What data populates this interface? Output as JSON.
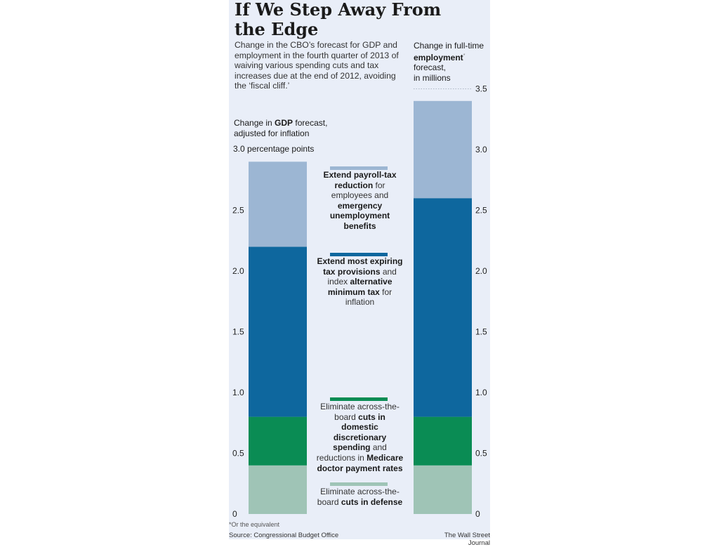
{
  "title": "If We Step Away From the Edge",
  "subtitle": "Change in the CBO’s forecast for GDP and employment in the fourth quarter of 2013 of waiving various spending cuts and tax increases due at the end of 2012, avoiding the ‘fiscal cliff.’",
  "gdp_label": {
    "pre": "Change in ",
    "bold": "GDP",
    "post": " forecast, adjusted for inflation"
  },
  "gdp_unit": "3.0 percentage points",
  "emp_label": {
    "line1": "Change in full-time",
    "bold": "employment",
    "mark": "*",
    "line3": "forecast,",
    "line4": "in millions"
  },
  "legend": [
    {
      "color": "#9cb6d3",
      "parts": [
        [
          "b",
          "Extend payroll-tax reduction"
        ],
        [
          "n",
          " for employees and "
        ],
        [
          "b",
          "emergency unemployment benefits"
        ]
      ]
    },
    {
      "color": "#0e679e",
      "parts": [
        [
          "b",
          "Extend most expiring tax provisions"
        ],
        [
          "n",
          " and index "
        ],
        [
          "b",
          "alternative minimum tax"
        ],
        [
          "n",
          " for inflation"
        ]
      ]
    },
    {
      "color": "#0a8c54",
      "parts": [
        [
          "n",
          "Eliminate across-the-board "
        ],
        [
          "b",
          "cuts in domestic discretionary spending"
        ],
        [
          "n",
          " and reductions in "
        ],
        [
          "b",
          "Medicare doctor payment rates"
        ]
      ]
    },
    {
      "color": "#9fc4b6",
      "parts": [
        [
          "n",
          "Eliminate across-the-board "
        ],
        [
          "b",
          "cuts in defense"
        ]
      ]
    }
  ],
  "footnote": "*Or the equivalent",
  "source": "Source: Congressional Budget Office",
  "credit": "The Wall Street Journal",
  "chart_data": [
    {
      "type": "bar",
      "stacked": true,
      "categories": [
        "GDP"
      ],
      "ylim": [
        0,
        3.0
      ],
      "yticks": [
        "0",
        "0.5",
        "1.0",
        "1.5",
        "2.0",
        "2.5"
      ],
      "series": [
        {
          "name": "Eliminate across-the-board cuts in defense",
          "values": [
            0.4
          ],
          "color": "#9fc4b6"
        },
        {
          "name": "Eliminate across-the-board cuts in domestic discretionary spending and reductions in Medicare doctor payment rates",
          "values": [
            0.4
          ],
          "color": "#0a8c54"
        },
        {
          "name": "Extend most expiring tax provisions and index alternative minimum tax for inflation",
          "values": [
            1.4
          ],
          "color": "#0e679e"
        },
        {
          "name": "Extend payroll-tax reduction for employees and emergency unemployment benefits",
          "values": [
            0.7
          ],
          "color": "#9cb6d3"
        }
      ]
    },
    {
      "type": "bar",
      "stacked": true,
      "categories": [
        "Employment"
      ],
      "ylim": [
        0,
        3.5
      ],
      "yticks": [
        "0",
        "0.5",
        "1.0",
        "1.5",
        "2.0",
        "2.5",
        "3.0",
        "3.5"
      ],
      "series": [
        {
          "name": "Eliminate across-the-board cuts in defense",
          "values": [
            0.4
          ],
          "color": "#9fc4b6"
        },
        {
          "name": "Eliminate across-the-board cuts in domestic discretionary spending and reductions in Medicare doctor payment rates",
          "values": [
            0.4
          ],
          "color": "#0a8c54"
        },
        {
          "name": "Extend most expiring tax provisions and index alternative minimum tax for inflation",
          "values": [
            1.8
          ],
          "color": "#0e679e"
        },
        {
          "name": "Extend payroll-tax reduction for employees and emergency unemployment benefits",
          "values": [
            0.8
          ],
          "color": "#9cb6d3"
        }
      ]
    }
  ]
}
